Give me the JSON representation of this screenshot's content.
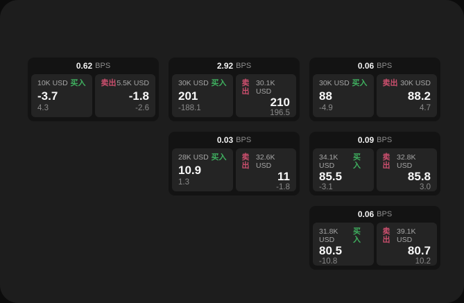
{
  "labels": {
    "buy": "买入",
    "sell": "卖出",
    "unit": "BPS"
  },
  "colors": {
    "buy_green": "#3fb05f",
    "sell_red": "#cc4f6e",
    "window_bg": "#1d1d1d",
    "card_bg": "#131313",
    "panel_bg": "#242424"
  },
  "cards": [
    {
      "bps": "0.62",
      "buy": {
        "size": "10K USD",
        "value": "-3.7",
        "change": "4.3"
      },
      "sell": {
        "size": "5.5K USD",
        "value": "-1.8",
        "change": "-2.6"
      }
    },
    {
      "bps": "2.92",
      "buy": {
        "size": "30K USD",
        "value": "201",
        "change": "-188.1"
      },
      "sell": {
        "size": "30.1K USD",
        "value": "210",
        "change": "196.5"
      }
    },
    {
      "bps": "0.06",
      "buy": {
        "size": "30K USD",
        "value": "88",
        "change": "-4.9"
      },
      "sell": {
        "size": "30K USD",
        "value": "88.2",
        "change": "4.7"
      }
    },
    {
      "bps": "0.03",
      "buy": {
        "size": "28K USD",
        "value": "10.9",
        "change": "1.3"
      },
      "sell": {
        "size": "32.6K USD",
        "value": "11",
        "change": "-1.8"
      }
    },
    {
      "bps": "0.09",
      "buy": {
        "size": "34.1K USD",
        "value": "85.5",
        "change": "-3.1"
      },
      "sell": {
        "size": "32.8K USD",
        "value": "85.8",
        "change": "3.0"
      }
    },
    {
      "bps": "0.06",
      "buy": {
        "size": "31.8K USD",
        "value": "80.5",
        "change": "-10.8"
      },
      "sell": {
        "size": "39.1K USD",
        "value": "80.7",
        "change": "10.2"
      }
    }
  ]
}
